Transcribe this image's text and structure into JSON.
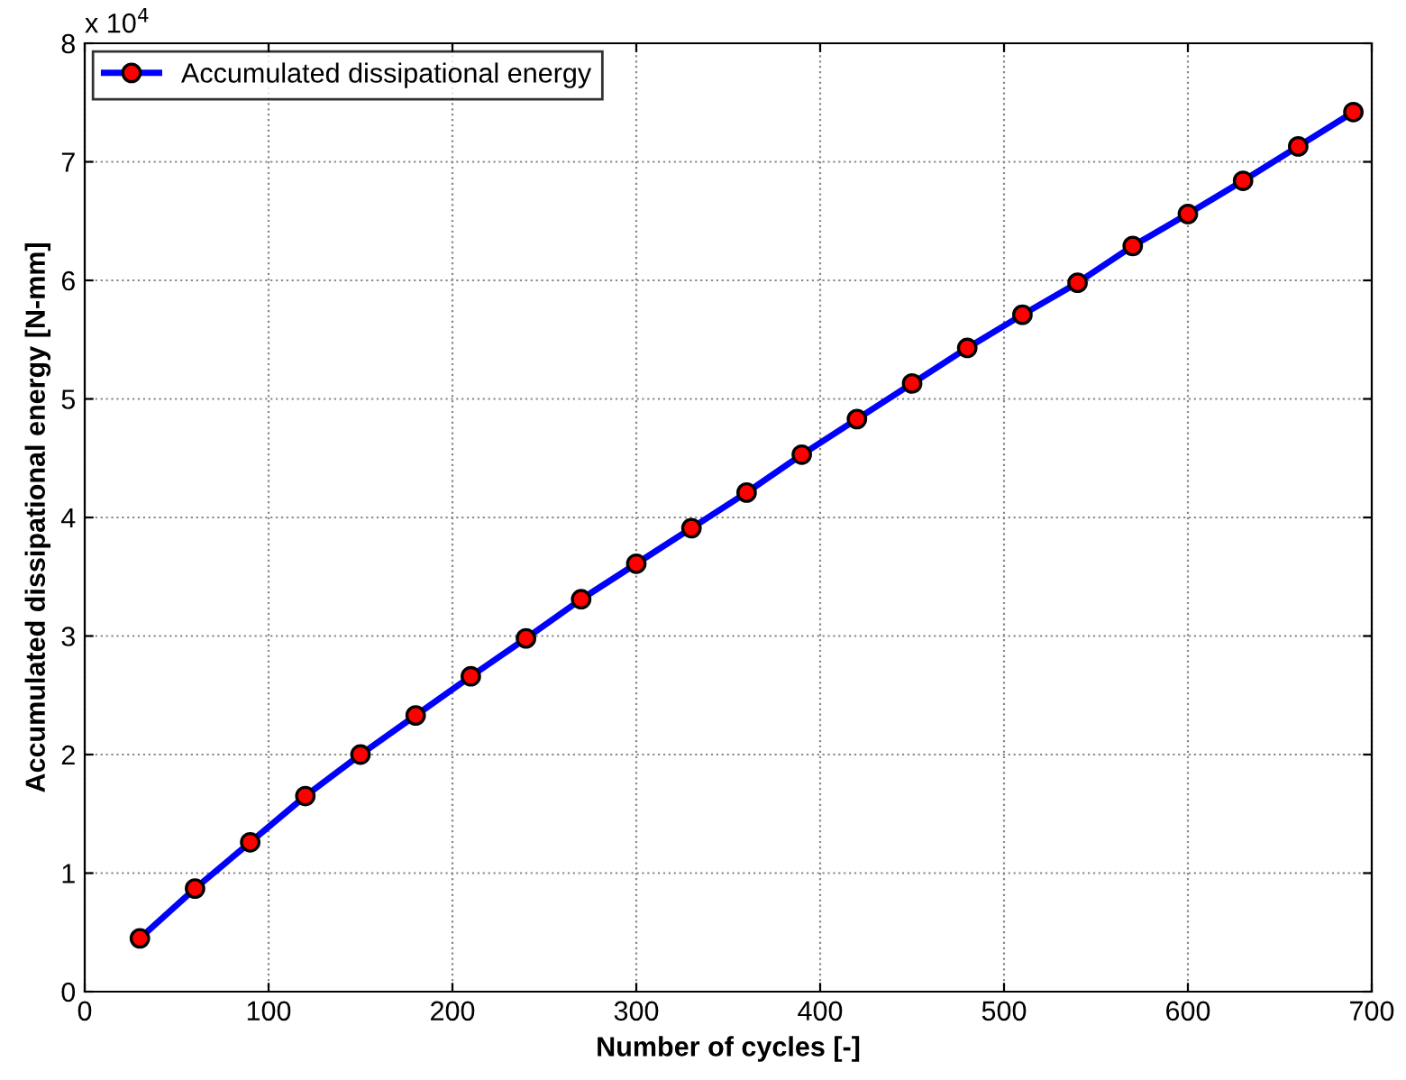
{
  "chart_data": {
    "type": "line",
    "xlabel": "Number of cycles [-]",
    "ylabel": "Accumulated dissipational energy [N-mm]",
    "annotations": [
      "x 10$^{4}$"
    ],
    "x": [
      30,
      60,
      90,
      120,
      150,
      180,
      210,
      240,
      270,
      300,
      330,
      360,
      390,
      420,
      450,
      480,
      510,
      540,
      570,
      600,
      630,
      660,
      690
    ],
    "series": [
      {
        "name": "Accumulated dissipational energy",
        "color": "#0000ff",
        "values": [
          0.45,
          0.87,
          1.26,
          1.65,
          2.0,
          2.33,
          2.66,
          2.98,
          3.31,
          3.61,
          3.91,
          4.21,
          4.53,
          4.83,
          5.13,
          5.43,
          5.71,
          5.98,
          6.29,
          6.56,
          6.84,
          7.13,
          7.42
        ]
      }
    ],
    "xlim": [
      0,
      700
    ],
    "xticks": [
      0,
      100,
      200,
      300,
      400,
      500,
      600,
      700
    ],
    "ylim": [
      0,
      8
    ],
    "yticks": [
      0,
      1,
      2,
      3,
      4,
      5,
      6,
      7,
      8
    ],
    "grid": true,
    "legend": "top left",
    "marker": "circle",
    "line_style": "solid"
  }
}
